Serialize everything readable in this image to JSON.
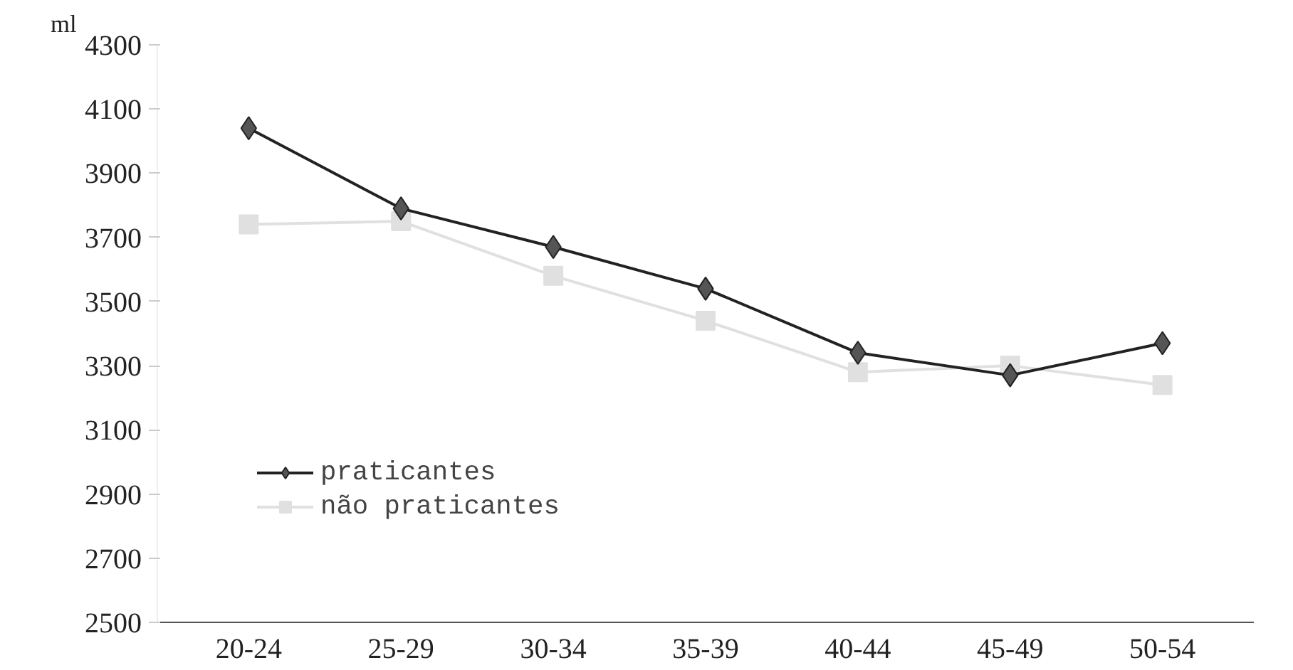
{
  "chart_data": {
    "type": "line",
    "ylabel": "ml",
    "categories": [
      "20-24",
      "25-29",
      "30-34",
      "35-39",
      "40-44",
      "45-49",
      "50-54"
    ],
    "series": [
      {
        "name": "praticantes",
        "color": "#555555",
        "marker": "diamond",
        "values": [
          4040,
          3790,
          3670,
          3540,
          3340,
          3270,
          3370
        ]
      },
      {
        "name": "não praticantes",
        "color": "#e0e0e0",
        "marker": "square",
        "values": [
          3740,
          3750,
          3580,
          3440,
          3280,
          3300,
          3240
        ]
      }
    ],
    "ylim": [
      2500,
      4300
    ],
    "yticks": [
      2500,
      2700,
      2900,
      3100,
      3300,
      3500,
      3700,
      3900,
      4100,
      4300
    ],
    "grid": false,
    "legend": "bottom left",
    "line_style": "solid"
  }
}
